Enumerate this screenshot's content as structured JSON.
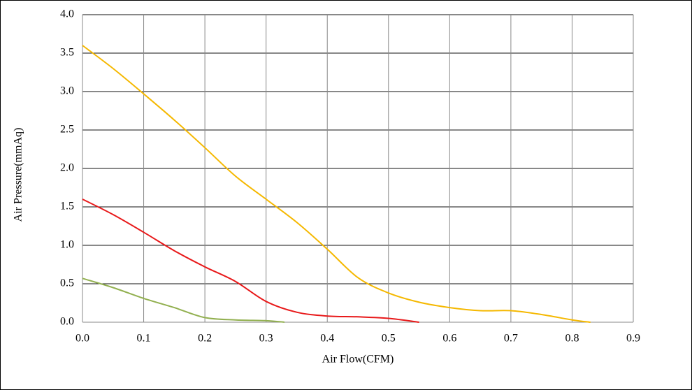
{
  "chart_data": {
    "type": "line",
    "xlabel": "Air Flow(CFM)",
    "ylabel": "Air Pressure(mmAq)",
    "xlim": [
      0,
      0.9
    ],
    "ylim": [
      0,
      4
    ],
    "xticks": [
      {
        "value": 0,
        "label": "0.0"
      },
      0.1,
      0.2,
      0.3,
      0.4,
      0.5,
      0.6,
      0.7,
      0.8,
      0.9
    ],
    "yticks": [
      {
        "value": 0,
        "label": "0.0"
      },
      0.5,
      {
        "value": 1,
        "label": "1.0"
      },
      1.5,
      {
        "value": 2,
        "label": "2.0"
      },
      2.5,
      {
        "value": 3,
        "label": "3.0"
      },
      3.5,
      {
        "value": 4,
        "label": "4.0"
      }
    ],
    "grid": true,
    "series": [
      {
        "color": "#f5b800",
        "x": [
          0,
          0.05,
          0.1,
          0.15,
          0.2,
          0.25,
          0.3,
          0.35,
          0.4,
          0.45,
          0.5,
          0.55,
          0.6,
          0.65,
          0.7,
          0.75,
          0.8,
          0.83
        ],
        "values": [
          3.6,
          3.3,
          2.97,
          2.63,
          2.27,
          1.9,
          1.6,
          1.3,
          0.95,
          0.58,
          0.38,
          0.26,
          0.19,
          0.15,
          0.15,
          0.1,
          0.03,
          0
        ]
      },
      {
        "color": "#e8191a",
        "x": [
          0,
          0.05,
          0.1,
          0.15,
          0.2,
          0.25,
          0.3,
          0.35,
          0.4,
          0.45,
          0.5,
          0.55
        ],
        "values": [
          1.6,
          1.4,
          1.17,
          0.93,
          0.72,
          0.53,
          0.27,
          0.13,
          0.08,
          0.07,
          0.05,
          0
        ]
      },
      {
        "color": "#92b050",
        "x": [
          0,
          0.05,
          0.1,
          0.15,
          0.2,
          0.25,
          0.3,
          0.33
        ],
        "values": [
          0.57,
          0.45,
          0.31,
          0.19,
          0.06,
          0.03,
          0.02,
          0
        ]
      }
    ]
  }
}
